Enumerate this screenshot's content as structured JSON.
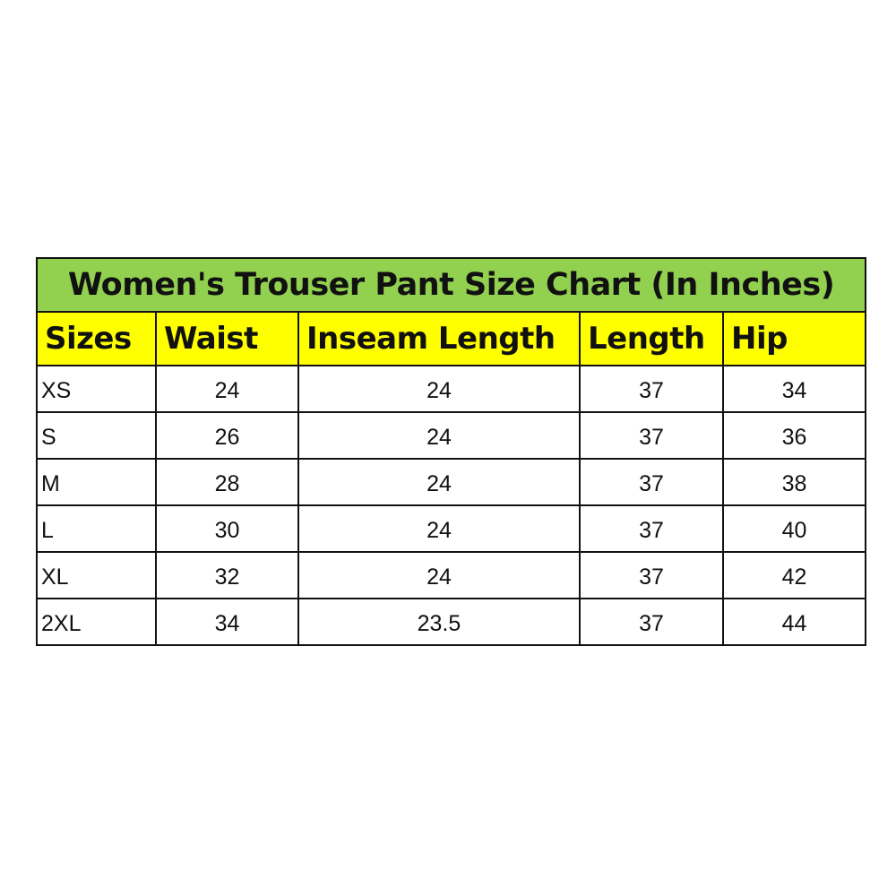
{
  "title": "Women's Trouser Pant Size Chart (In Inches)",
  "headers": [
    "Sizes",
    "Waist",
    "Inseam Length",
    "Length",
    "Hip"
  ],
  "rows": [
    [
      "XS",
      "24",
      "24",
      "37",
      "34"
    ],
    [
      "S",
      "26",
      "24",
      "37",
      "36"
    ],
    [
      "M",
      "28",
      "24",
      "37",
      "38"
    ],
    [
      "L",
      "30",
      "24",
      "37",
      "40"
    ],
    [
      "XL",
      "32",
      "24",
      "37",
      "42"
    ],
    [
      "2XL",
      "34",
      "23.5",
      "37",
      "44"
    ]
  ],
  "colors": {
    "title_bg": "#92D050",
    "header_bg": "#FFFF00"
  }
}
